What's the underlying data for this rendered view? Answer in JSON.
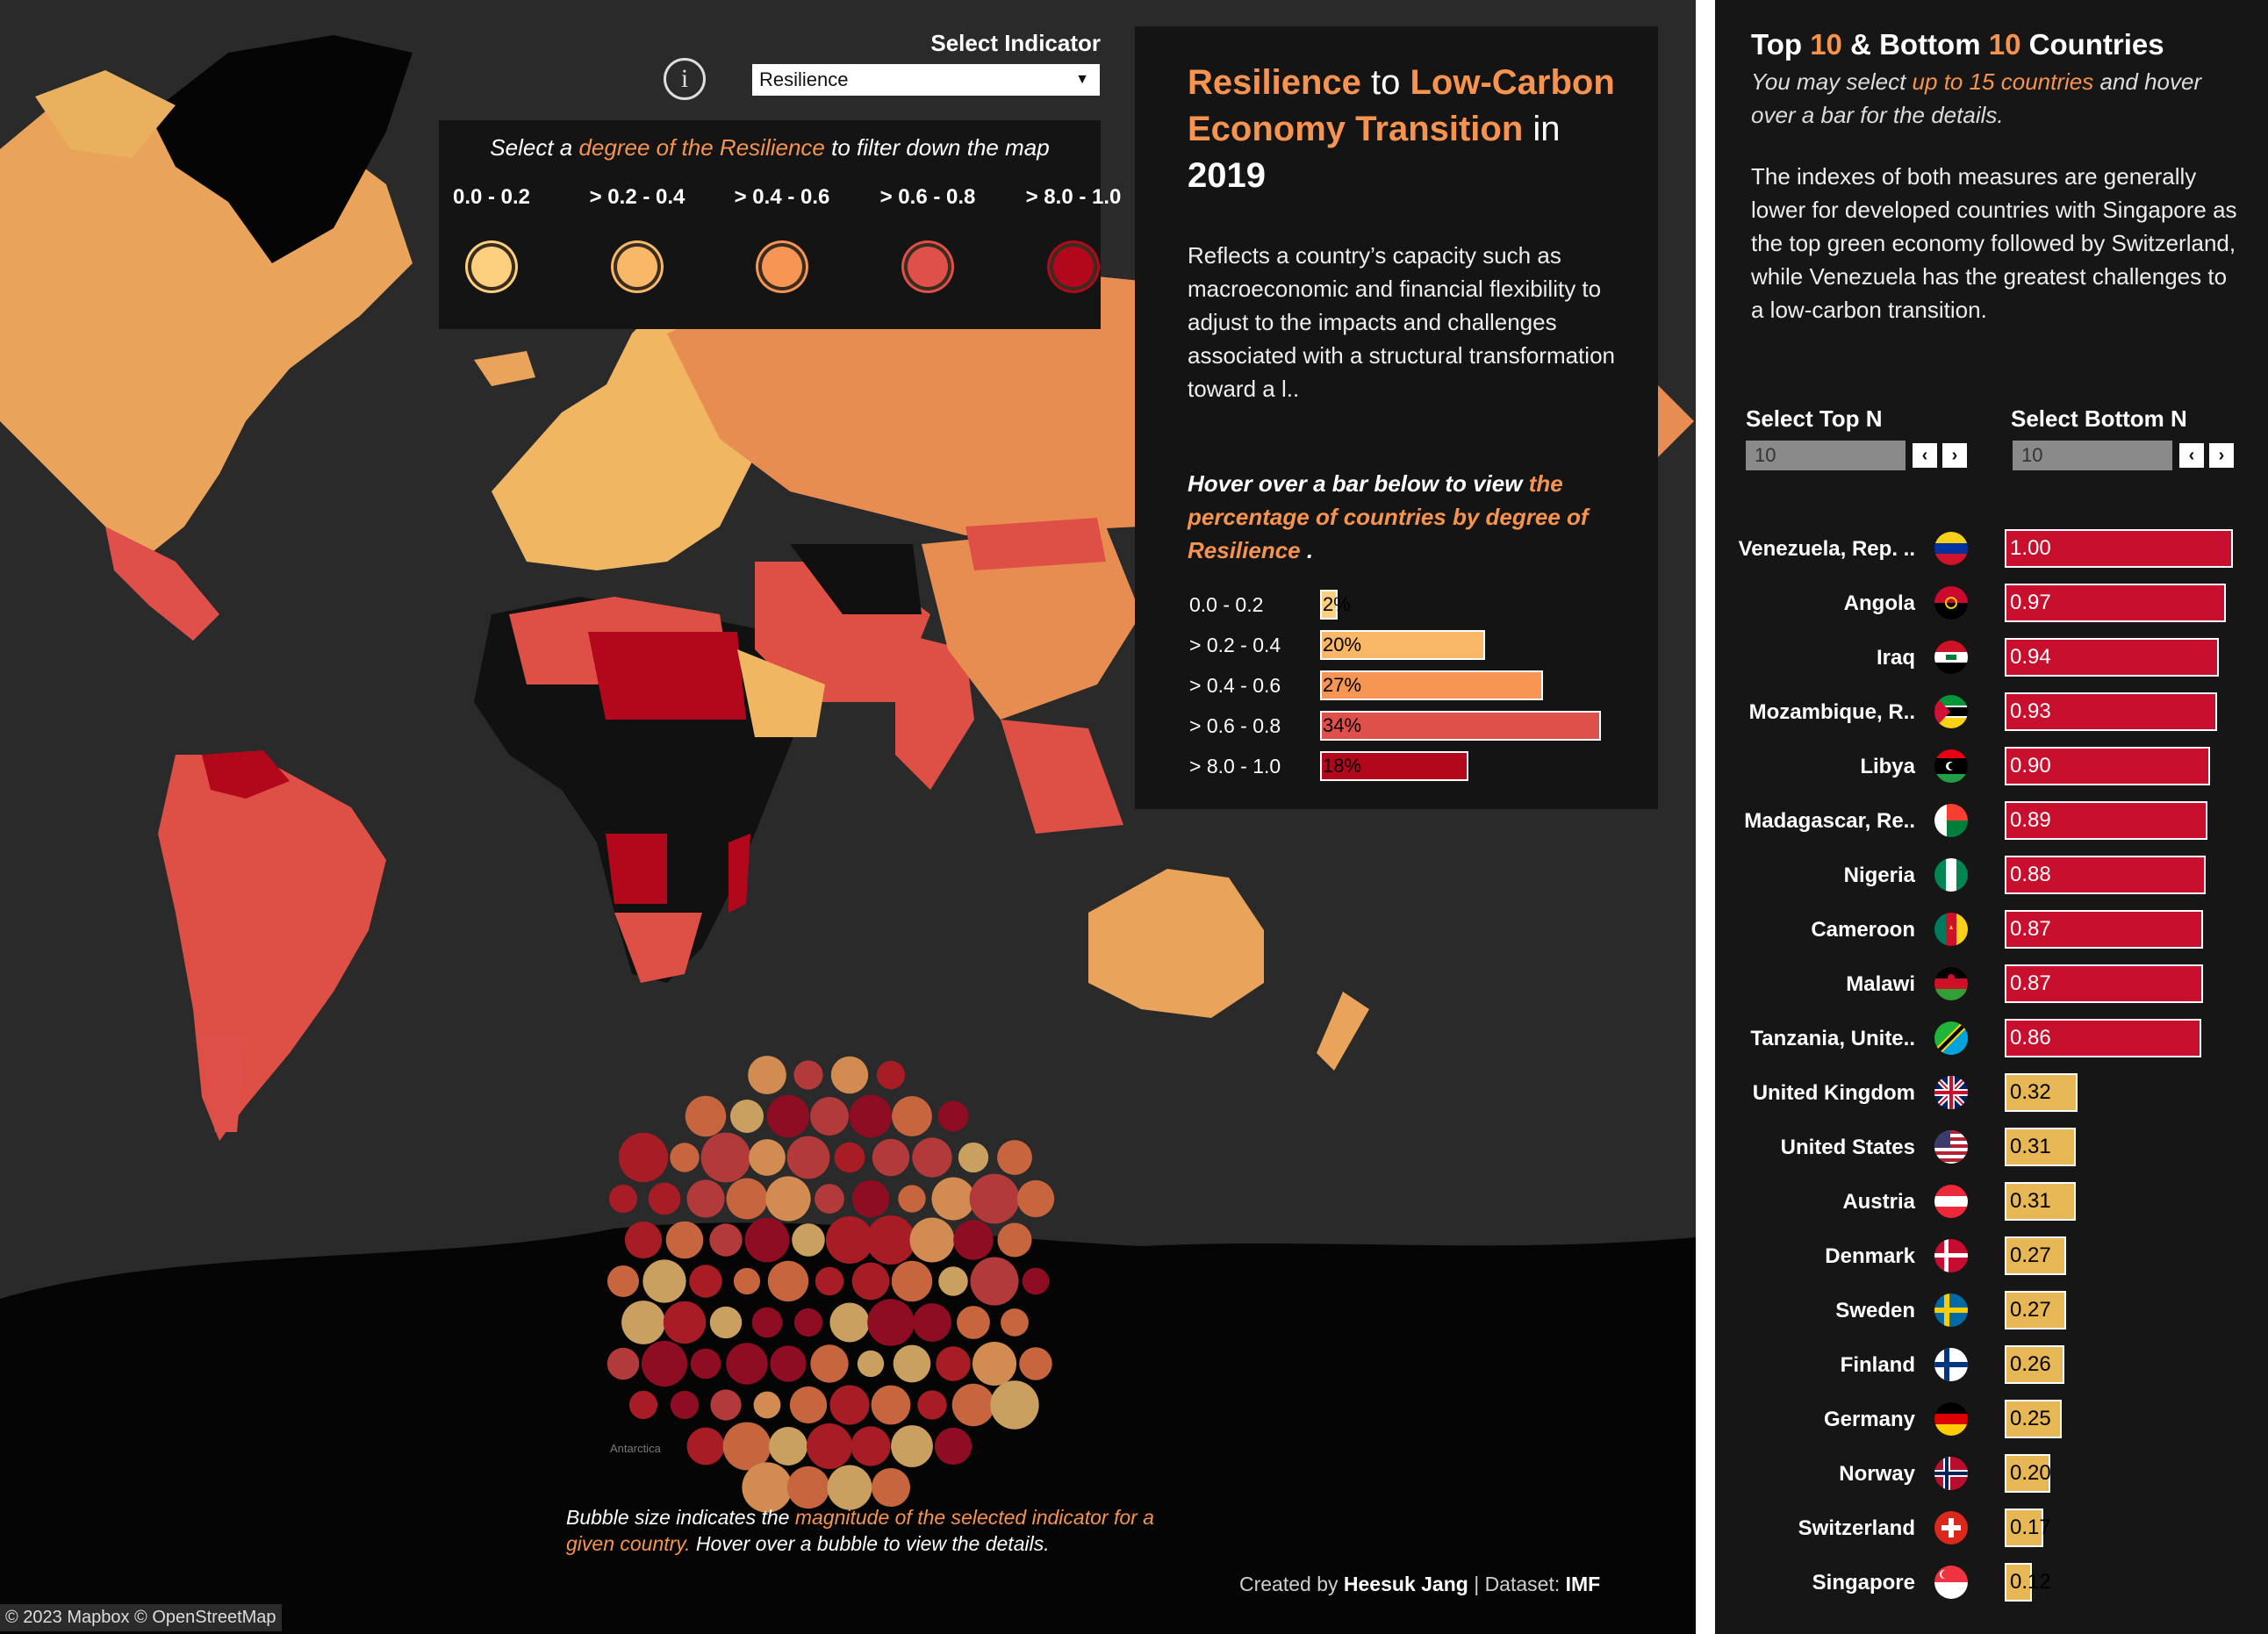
{
  "indicator": {
    "label": "Select Indicator",
    "value": "Resilience",
    "info_icon": "i"
  },
  "filter": {
    "hint_pre": "Select a ",
    "hint_em": "degree of the Resilience",
    "hint_post": " to filter down the map",
    "degrees": [
      {
        "label": "0.0 - 0.2",
        "color": "#fcd07e"
      },
      {
        "label": "> 0.2 - 0.4",
        "color": "#f9b868"
      },
      {
        "label": "> 0.4 - 0.6",
        "color": "#f79554"
      },
      {
        "label": "> 0.6 - 0.8",
        "color": "#e0504b"
      },
      {
        "label": "> 8.0 - 1.0",
        "color": "#b3081c"
      }
    ]
  },
  "info": {
    "title_a": "Resilience",
    "title_b": " to ",
    "title_c": "Low-Carbon Economy Transition",
    "title_d": " in ",
    "title_e": "2019",
    "description": "Reflects a country’s capacity such as macroeconomic and financial flexibility to adjust to the impacts and challenges associated with a structural transformation toward a l..",
    "hover_pre": "Hover over a bar below to view ",
    "hover_em": "the percentage of countries by degree of Resilience",
    "hover_post": " .",
    "distribution": [
      {
        "label": "0.0 - 0.2",
        "value": 2,
        "text": "2%",
        "color": "#fcd07e"
      },
      {
        "label": "> 0.2 - 0.4",
        "value": 20,
        "text": "20%",
        "color": "#f9b868"
      },
      {
        "label": "> 0.4 - 0.6",
        "value": 27,
        "text": "27%",
        "color": "#f79554"
      },
      {
        "label": "> 0.6 - 0.8",
        "value": 34,
        "text": "34%",
        "color": "#e0504b"
      },
      {
        "label": "> 8.0 - 1.0",
        "value": 18,
        "text": "18%",
        "color": "#b3081c"
      }
    ]
  },
  "map": {
    "bubble_note_pre": "Bubble size indicates the ",
    "bubble_note_em": "magnitude of the selected indicator for a given country.",
    "bubble_note_post": " Hover over a bubble to view the details.",
    "label_antarctica": "Antarctica",
    "credit_pre": "Created by ",
    "credit_author": "Heesuk Jang",
    "credit_mid": " | Dataset: ",
    "credit_source": "IMF",
    "attribution": "© 2023 Mapbox  © OpenStreetMap"
  },
  "ranking": {
    "title_a": "Top ",
    "title_b": "10",
    "title_c": " & Bottom ",
    "title_d": "10",
    "title_e": " Countries",
    "subtitle_a": "You may select ",
    "subtitle_b": "up to 15 countries",
    "subtitle_c": " and hover over a bar for the details.",
    "description": "The indexes of both measures are generally lower for developed countries with Singapore as the top green economy followed by Switzerland, while Venezuela has the greatest challenges to a low-carbon transition.",
    "top_label": "Select Top N",
    "top_value": "10",
    "bottom_label": "Select Bottom N",
    "bottom_value": "10",
    "prev_icon": "‹",
    "next_icon": "›",
    "countries": [
      {
        "name": "Venezuela, Rep. ..",
        "value": 1.0,
        "text": "1.00",
        "flag": "venezuela"
      },
      {
        "name": "Angola",
        "value": 0.97,
        "text": "0.97",
        "flag": "angola"
      },
      {
        "name": "Iraq",
        "value": 0.94,
        "text": "0.94",
        "flag": "iraq"
      },
      {
        "name": "Mozambique, R..",
        "value": 0.93,
        "text": "0.93",
        "flag": "mozambique"
      },
      {
        "name": "Libya",
        "value": 0.9,
        "text": "0.90",
        "flag": "libya"
      },
      {
        "name": "Madagascar, Re..",
        "value": 0.89,
        "text": "0.89",
        "flag": "madagascar"
      },
      {
        "name": "Nigeria",
        "value": 0.88,
        "text": "0.88",
        "flag": "nigeria"
      },
      {
        "name": "Cameroon",
        "value": 0.87,
        "text": "0.87",
        "flag": "cameroon"
      },
      {
        "name": "Malawi",
        "value": 0.87,
        "text": "0.87",
        "flag": "malawi"
      },
      {
        "name": "Tanzania, Unite..",
        "value": 0.86,
        "text": "0.86",
        "flag": "tanzania"
      },
      {
        "name": "United Kingdom",
        "value": 0.32,
        "text": "0.32",
        "flag": "uk"
      },
      {
        "name": "United States",
        "value": 0.31,
        "text": "0.31",
        "flag": "usa"
      },
      {
        "name": "Austria",
        "value": 0.31,
        "text": "0.31",
        "flag": "austria"
      },
      {
        "name": "Denmark",
        "value": 0.27,
        "text": "0.27",
        "flag": "denmark"
      },
      {
        "name": "Sweden",
        "value": 0.27,
        "text": "0.27",
        "flag": "sweden"
      },
      {
        "name": "Finland",
        "value": 0.26,
        "text": "0.26",
        "flag": "finland"
      },
      {
        "name": "Germany",
        "value": 0.25,
        "text": "0.25",
        "flag": "germany"
      },
      {
        "name": "Norway",
        "value": 0.2,
        "text": "0.20",
        "flag": "norway"
      },
      {
        "name": "Switzerland",
        "value": 0.17,
        "text": "0.17",
        "flag": "switzerland"
      },
      {
        "name": "Singapore",
        "value": 0.12,
        "text": "0.12",
        "flag": "singapore"
      }
    ],
    "colors": {
      "high": "#c8102e",
      "low": "#e7b755"
    }
  }
}
